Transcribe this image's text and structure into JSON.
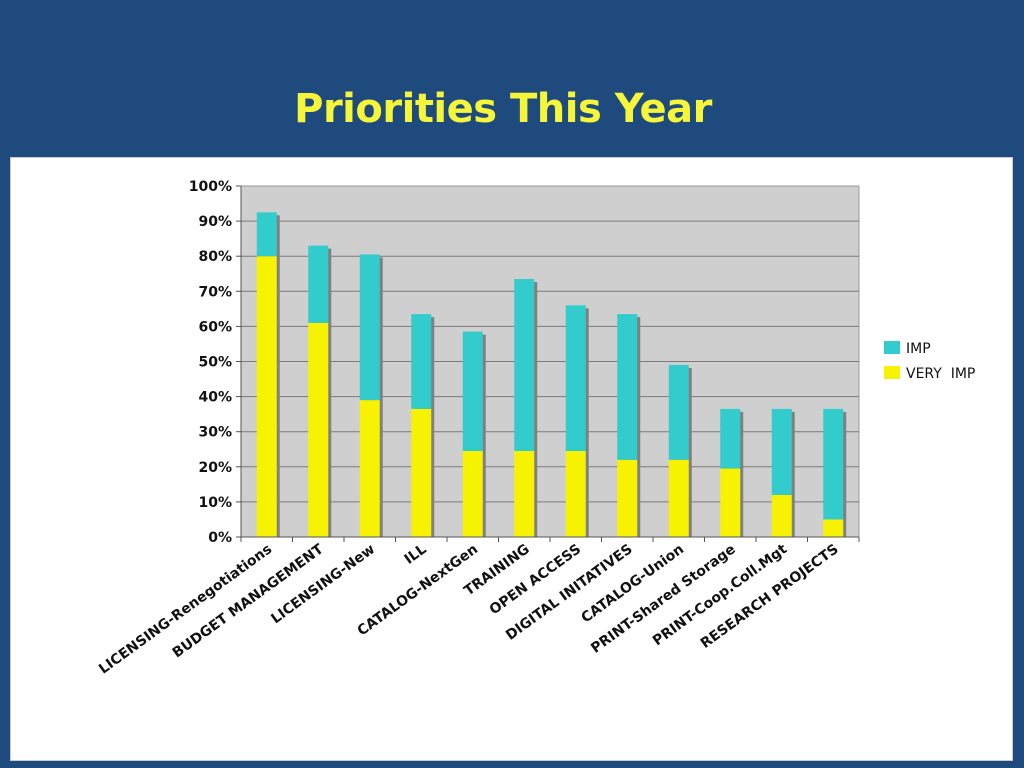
{
  "slide": {
    "title": "Priorities This Year"
  },
  "colors": {
    "slide_background": "#1f4a7e",
    "title": "#f5f53a",
    "plot_area": "#cfcfcf",
    "very_imp": "#f7f200",
    "imp": "#33cccc",
    "bar_shadow": "#808080"
  },
  "chart_data": {
    "type": "bar",
    "stacked": true,
    "categories": [
      "LICENSING-Renegotiations",
      "BUDGET MANAGEMENT",
      "LICENSING-New",
      "ILL",
      "CATALOG-NextGen",
      "TRAINING",
      "OPEN ACCESS",
      "DIGITAL INITATIVES",
      "CATALOG-Union",
      "PRINT-Shared Storage",
      "PRINT-Coop.Coll.Mgt",
      "RESEARCH PROJECTS"
    ],
    "series": [
      {
        "name": "VERY IMP",
        "color": "#f7f200",
        "values": [
          80,
          61,
          39,
          36.5,
          24.5,
          24.5,
          24.5,
          22,
          22,
          19.5,
          12,
          5
        ]
      },
      {
        "name": "IMP",
        "color": "#33cccc",
        "values": [
          12.5,
          22,
          41.5,
          27,
          34,
          49,
          41.5,
          41.5,
          27,
          17,
          24.5,
          31.5
        ]
      }
    ],
    "ylim": [
      0,
      100
    ],
    "yticks": [
      "0%",
      "10%",
      "20%",
      "30%",
      "40%",
      "50%",
      "60%",
      "70%",
      "80%",
      "90%",
      "100%"
    ],
    "ytick_values": [
      0,
      10,
      20,
      30,
      40,
      50,
      60,
      70,
      80,
      90,
      100
    ],
    "grid": true,
    "legend_position": "right",
    "legend": [
      {
        "name": "IMP",
        "color": "#33cccc"
      },
      {
        "name": "VERY  IMP",
        "color": "#f7f200"
      }
    ]
  }
}
